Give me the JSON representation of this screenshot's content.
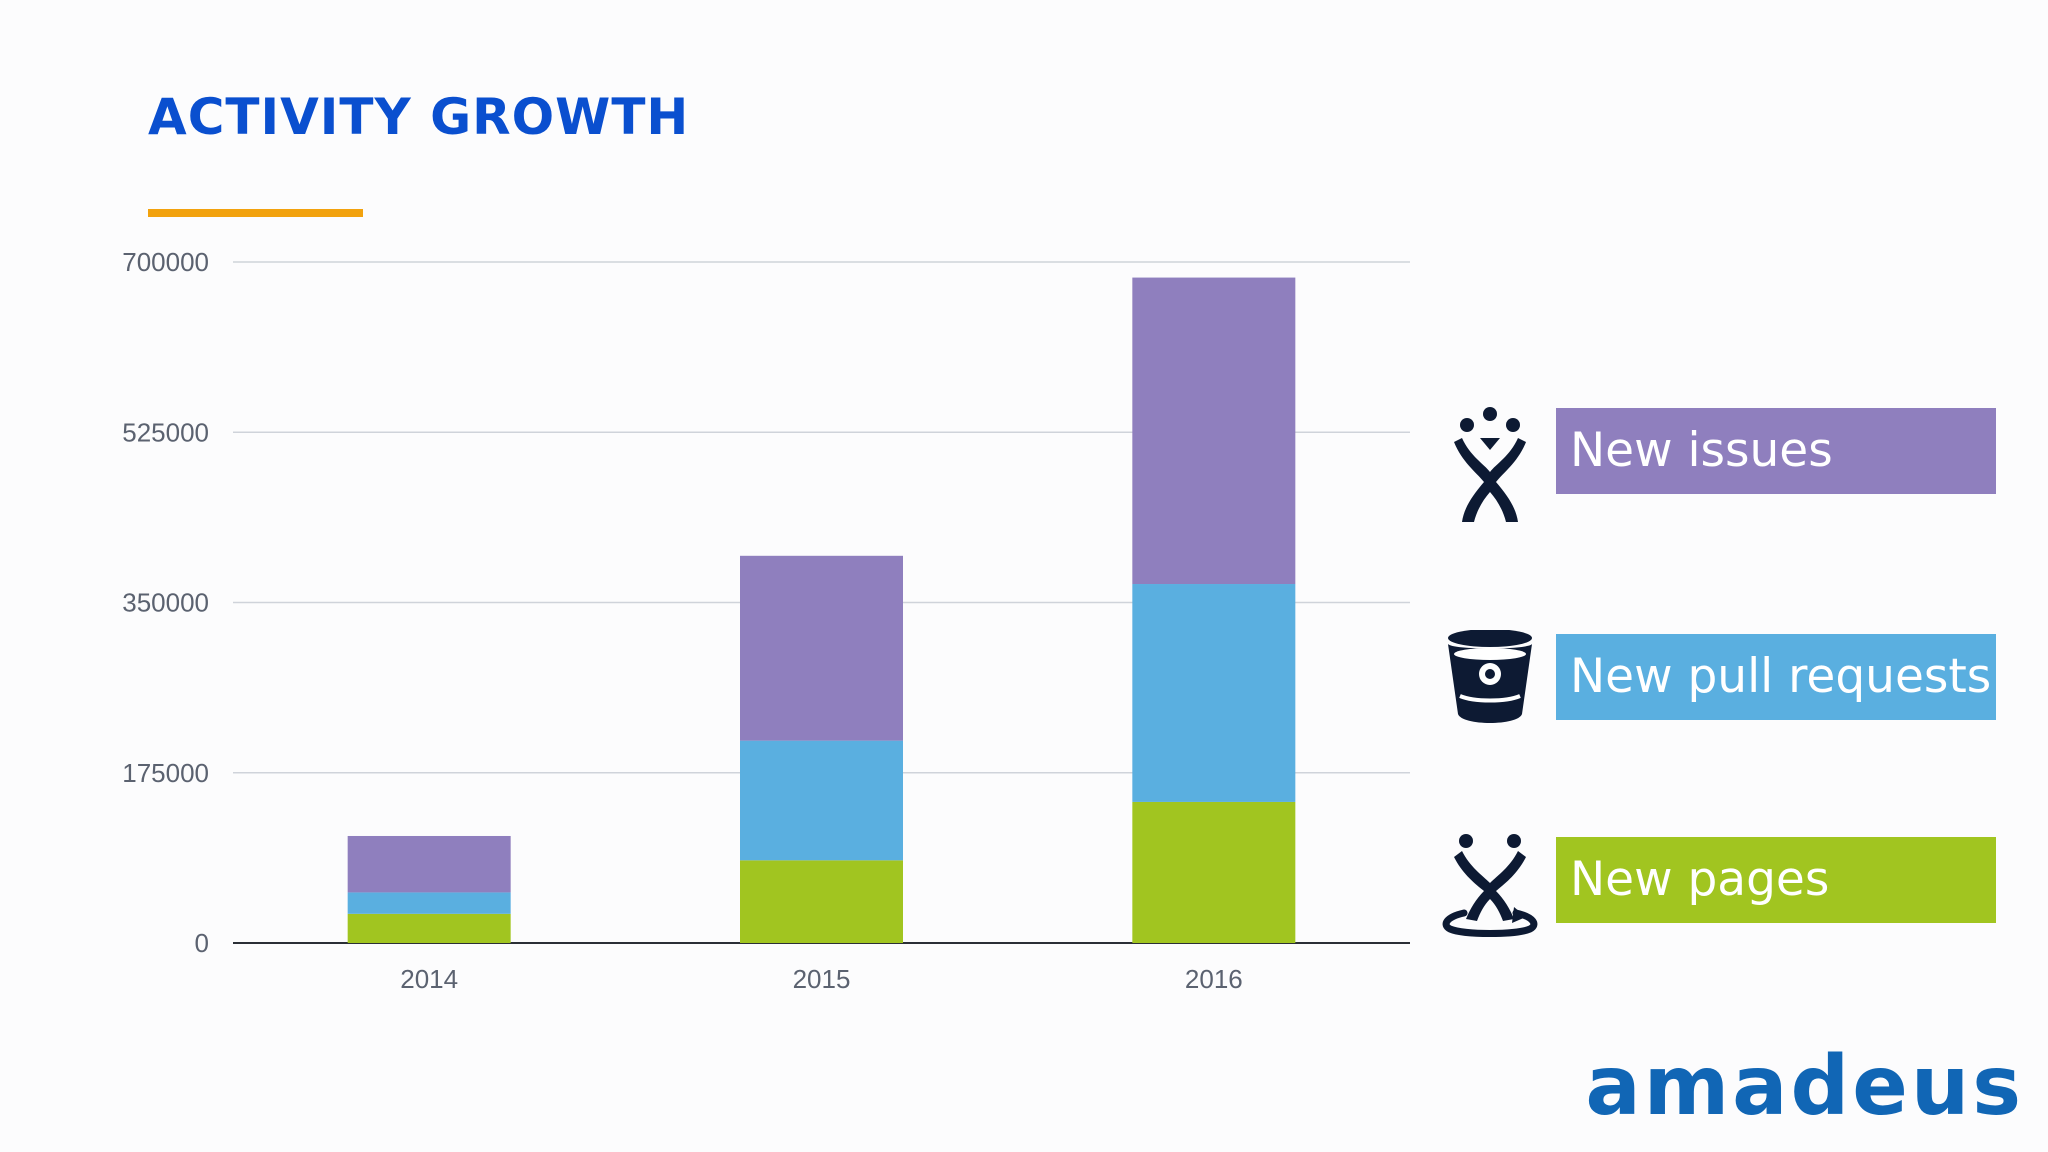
{
  "slide": {
    "title": "ACTIVITY GROWTH",
    "logo_text": "amadeus",
    "colors": {
      "title": "#0a4fcf",
      "accent_rule": "#f2a20e",
      "logo": "#1166b5",
      "icons": "#0d1a33"
    }
  },
  "legend": [
    {
      "label": "New issues",
      "color": "#8f7fbe",
      "icon": "jira-icon"
    },
    {
      "label": "New pull requests",
      "color": "#5aafe0",
      "icon": "bitbucket-icon"
    },
    {
      "label": "New pages",
      "color": "#a1c520",
      "icon": "confluence-icon"
    }
  ],
  "chart_data": {
    "type": "bar",
    "stacked": true,
    "categories": [
      "2014",
      "2015",
      "2016"
    ],
    "series": [
      {
        "name": "New pages",
        "color": "#a1c520",
        "values": [
          30000,
          85000,
          145000
        ]
      },
      {
        "name": "New pull requests",
        "color": "#5aafe0",
        "values": [
          22000,
          123000,
          224000
        ]
      },
      {
        "name": "New issues",
        "color": "#8f7fbe",
        "values": [
          58000,
          190000,
          315000
        ]
      }
    ],
    "yticks": [
      "0",
      "175000",
      "350000",
      "525000",
      "700000"
    ],
    "ylim": [
      0,
      700000
    ],
    "grid": true,
    "legend_position": "right"
  }
}
